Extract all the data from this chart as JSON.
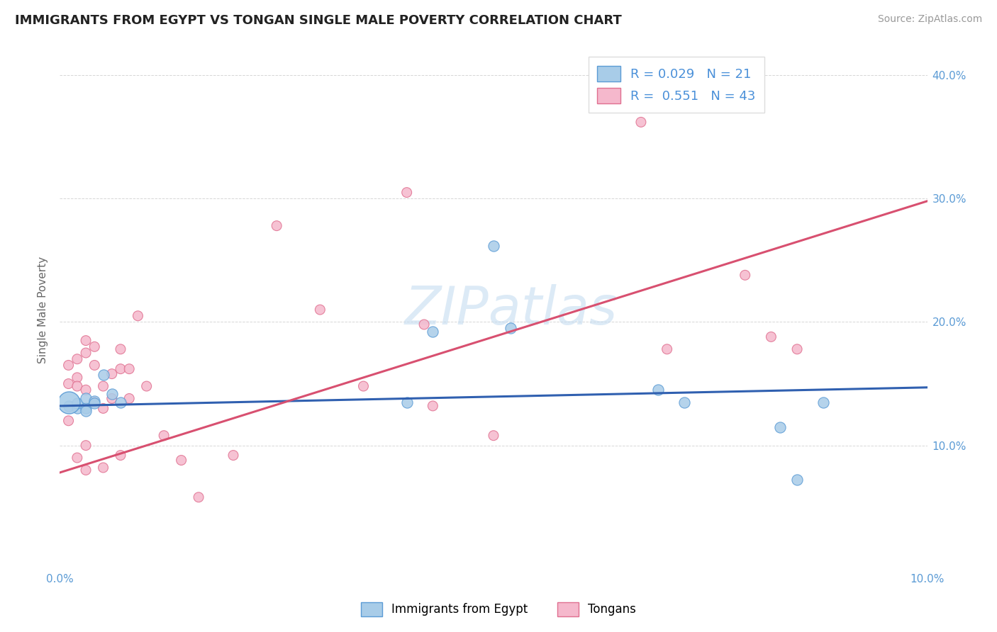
{
  "title": "IMMIGRANTS FROM EGYPT VS TONGAN SINGLE MALE POVERTY CORRELATION CHART",
  "source": "Source: ZipAtlas.com",
  "ylabel": "Single Male Poverty",
  "xlim": [
    0.0,
    0.1
  ],
  "ylim": [
    0.0,
    0.42
  ],
  "ytick_labels": [
    "",
    "10.0%",
    "20.0%",
    "30.0%",
    "40.0%"
  ],
  "ytick_values": [
    0.0,
    0.1,
    0.2,
    0.3,
    0.4
  ],
  "xtick_labels": [
    "0.0%",
    "",
    "",
    "",
    "",
    "",
    "",
    "",
    "",
    "",
    "10.0%"
  ],
  "xtick_values": [
    0.0,
    0.01,
    0.02,
    0.03,
    0.04,
    0.05,
    0.06,
    0.07,
    0.08,
    0.09,
    0.1
  ],
  "background_color": "#ffffff",
  "watermark": "ZIPatlas",
  "legend_r_egypt": "0.029",
  "legend_n_egypt": "21",
  "legend_r_tongan": "0.551",
  "legend_n_tongan": "43",
  "egypt_color": "#a8cce8",
  "tongan_color": "#f5b8cc",
  "egypt_edge_color": "#5b9bd5",
  "tongan_edge_color": "#e07090",
  "egypt_line_color": "#3060b0",
  "tongan_line_color": "#d85070",
  "grid_color": "#cccccc",
  "egypt_line": [
    0.0,
    0.132,
    0.1,
    0.147
  ],
  "tongan_line": [
    0.0,
    0.078,
    0.1,
    0.298
  ],
  "egypt_x": [
    0.001,
    0.001,
    0.002,
    0.002,
    0.003,
    0.003,
    0.003,
    0.004,
    0.004,
    0.005,
    0.006,
    0.007,
    0.04,
    0.043,
    0.05,
    0.052,
    0.069,
    0.072,
    0.083,
    0.085,
    0.088
  ],
  "egypt_y": [
    0.135,
    0.132,
    0.13,
    0.134,
    0.13,
    0.128,
    0.138,
    0.136,
    0.134,
    0.157,
    0.142,
    0.135,
    0.135,
    0.192,
    0.262,
    0.195,
    0.145,
    0.135,
    0.115,
    0.072,
    0.135
  ],
  "egypt_sizes": [
    500,
    100,
    100,
    100,
    100,
    100,
    100,
    100,
    100,
    100,
    100,
    100,
    100,
    100,
    100,
    100,
    100,
    100,
    100,
    100,
    100
  ],
  "tongan_x": [
    0.001,
    0.001,
    0.001,
    0.002,
    0.002,
    0.002,
    0.002,
    0.003,
    0.003,
    0.003,
    0.003,
    0.003,
    0.004,
    0.004,
    0.004,
    0.005,
    0.005,
    0.005,
    0.006,
    0.006,
    0.007,
    0.007,
    0.007,
    0.008,
    0.008,
    0.009,
    0.01,
    0.012,
    0.014,
    0.016,
    0.02,
    0.025,
    0.03,
    0.035,
    0.04,
    0.042,
    0.043,
    0.05,
    0.067,
    0.07,
    0.079,
    0.082,
    0.085
  ],
  "tongan_y": [
    0.165,
    0.15,
    0.12,
    0.17,
    0.155,
    0.148,
    0.09,
    0.185,
    0.175,
    0.145,
    0.1,
    0.08,
    0.18,
    0.165,
    0.135,
    0.148,
    0.13,
    0.082,
    0.158,
    0.138,
    0.178,
    0.162,
    0.092,
    0.162,
    0.138,
    0.205,
    0.148,
    0.108,
    0.088,
    0.058,
    0.092,
    0.278,
    0.21,
    0.148,
    0.305,
    0.198,
    0.132,
    0.108,
    0.362,
    0.178,
    0.238,
    0.188,
    0.178
  ],
  "tongan_sizes": [
    100,
    100,
    100,
    100,
    100,
    100,
    100,
    100,
    100,
    100,
    100,
    100,
    100,
    100,
    100,
    100,
    100,
    100,
    100,
    100,
    100,
    100,
    100,
    100,
    100,
    100,
    100,
    100,
    100,
    100,
    100,
    100,
    100,
    100,
    100,
    100,
    100,
    100,
    100,
    100,
    100,
    100,
    100
  ]
}
